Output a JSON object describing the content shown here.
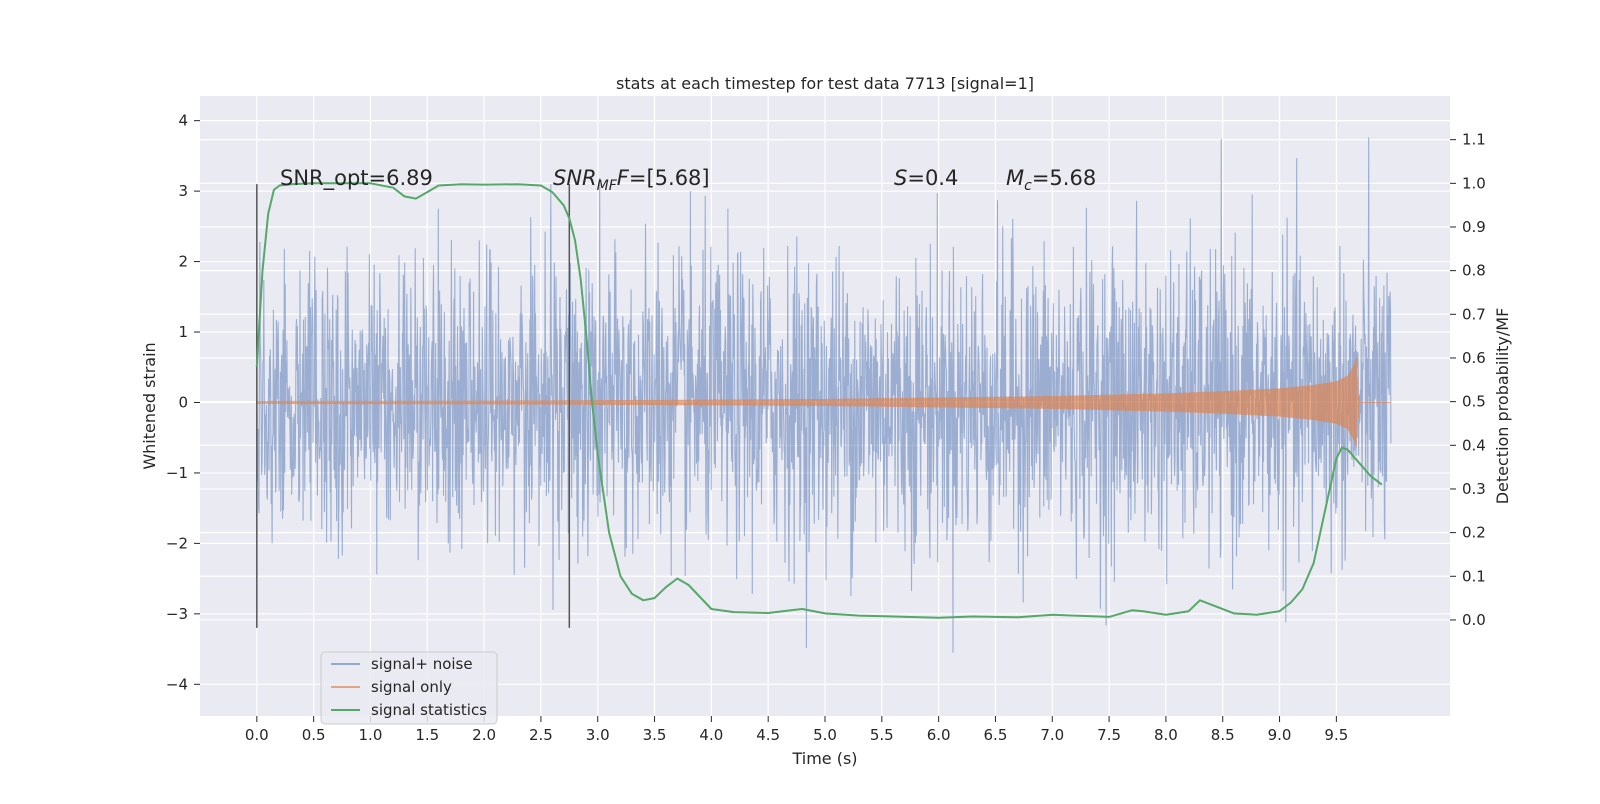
{
  "chart_data": {
    "type": "line",
    "title": "stats at each timestep for test data 7713 [signal=1]",
    "xlabel": "Time (s)",
    "ylabel_left": "Whitened strain",
    "ylabel_right": "Detection probability/MF",
    "xlim": [
      -0.5,
      10.5
    ],
    "ylim_left": [
      -4.45,
      4.35
    ],
    "ylim_right": [
      -0.22,
      1.2
    ],
    "x_ticks": [
      "0.0",
      "0.5",
      "1.0",
      "1.5",
      "2.0",
      "2.5",
      "3.0",
      "3.5",
      "4.0",
      "4.5",
      "5.0",
      "5.5",
      "6.0",
      "6.5",
      "7.0",
      "7.5",
      "8.0",
      "8.5",
      "9.0",
      "9.5"
    ],
    "y_left_ticks": [
      "4",
      "3",
      "2",
      "1",
      "0",
      "−1",
      "−2",
      "−3",
      "−4"
    ],
    "y_right_ticks": [
      "1.1",
      "1.0",
      "0.9",
      "0.8",
      "0.7",
      "0.6",
      "0.5",
      "0.4",
      "0.3",
      "0.2",
      "0.1",
      "0.0"
    ],
    "grid": true,
    "background": "#eaeaf2",
    "legend_position": "lower-left",
    "legend": [
      {
        "label": "signal+ noise",
        "color": "#4c72b0"
      },
      {
        "label": "signal only",
        "color": "#dd8452"
      },
      {
        "label": "signal statistics",
        "color": "#55a868"
      }
    ],
    "annotations": {
      "snr_opt": "SNR_opt=6.89",
      "snr_mf_base": "SNR",
      "snr_mf_sub": "MF",
      "snr_mf_rest": "=[5.68]",
      "s_base": "S",
      "s_rest": "=0.4",
      "mc_base": "M",
      "mc_sub": "c",
      "mc_rest": "=5.68"
    },
    "series": [
      {
        "name": "signal+ noise",
        "color": "#4c72b0",
        "description_values": {
          "x_range": [
            0.0,
            9.98
          ],
          "y_range": [
            -4.05,
            3.98
          ]
        }
      },
      {
        "name": "signal only",
        "color": "#dd8452",
        "x": [
          0.0,
          2.0,
          4.0,
          5.0,
          6.0,
          7.0,
          8.0,
          8.5,
          9.0,
          9.3,
          9.5,
          9.6,
          9.65,
          9.68,
          9.7,
          9.98
        ],
        "envelope": [
          0.02,
          0.025,
          0.04,
          0.05,
          0.07,
          0.09,
          0.13,
          0.16,
          0.2,
          0.25,
          0.3,
          0.38,
          0.52,
          0.66,
          0.0,
          0.0
        ]
      },
      {
        "name": "signal statistics",
        "color": "#55a868",
        "x": [
          0.0,
          0.05,
          0.1,
          0.15,
          0.2,
          0.3,
          0.5,
          1.0,
          1.2,
          1.3,
          1.4,
          1.5,
          1.6,
          1.8,
          2.0,
          2.3,
          2.5,
          2.6,
          2.7,
          2.75,
          2.8,
          2.85,
          2.9,
          2.95,
          3.0,
          3.1,
          3.2,
          3.3,
          3.4,
          3.5,
          3.6,
          3.7,
          3.8,
          4.0,
          4.2,
          4.5,
          4.7,
          4.8,
          5.0,
          5.3,
          5.6,
          6.0,
          6.3,
          6.7,
          7.0,
          7.2,
          7.5,
          7.7,
          7.8,
          8.0,
          8.2,
          8.3,
          8.4,
          8.6,
          8.8,
          9.0,
          9.1,
          9.2,
          9.3,
          9.4,
          9.5,
          9.55,
          9.6,
          9.7,
          9.8,
          9.9
        ],
        "y": [
          0.58,
          0.8,
          0.93,
          0.985,
          0.995,
          0.998,
          1.0,
          1.0,
          0.99,
          0.97,
          0.965,
          0.98,
          0.995,
          0.998,
          0.997,
          0.998,
          0.995,
          0.98,
          0.95,
          0.92,
          0.87,
          0.78,
          0.65,
          0.5,
          0.38,
          0.2,
          0.1,
          0.06,
          0.045,
          0.05,
          0.075,
          0.095,
          0.08,
          0.025,
          0.018,
          0.016,
          0.022,
          0.025,
          0.015,
          0.01,
          0.008,
          0.005,
          0.008,
          0.006,
          0.012,
          0.01,
          0.007,
          0.022,
          0.02,
          0.012,
          0.02,
          0.045,
          0.035,
          0.015,
          0.012,
          0.02,
          0.04,
          0.07,
          0.13,
          0.25,
          0.37,
          0.395,
          0.39,
          0.36,
          0.33,
          0.31
        ]
      }
    ],
    "vertical_lines": [
      0.0,
      2.75
    ]
  }
}
